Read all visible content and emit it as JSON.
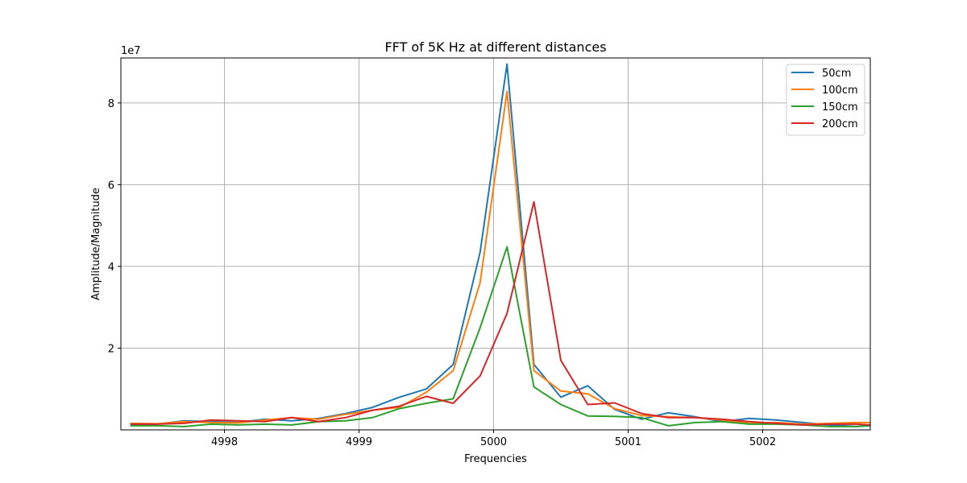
{
  "chart_data": {
    "type": "line",
    "title": "FFT of 5K Hz at different distances",
    "xlabel": "Frequencies",
    "ylabel": "Amplitude/Magnitude",
    "y_offset_label": "1e7",
    "xlim": [
      4997.23,
      5002.8
    ],
    "ylim": [
      0,
      9.1
    ],
    "x_ticks": [
      4998,
      4999,
      5000,
      5001,
      5002
    ],
    "x_tick_labels": [
      "4998",
      "4999",
      "5000",
      "5001",
      "5002"
    ],
    "y_ticks": [
      2,
      4,
      6,
      8
    ],
    "y_tick_labels": [
      "2",
      "4",
      "6",
      "8"
    ],
    "grid": true,
    "legend_position": "top-right",
    "x": [
      4997.3,
      4997.5,
      4997.7,
      4997.9,
      4998.1,
      4998.3,
      4998.5,
      4998.7,
      4998.9,
      4999.1,
      4999.3,
      4999.5,
      4999.7,
      4999.9,
      5000.1,
      5000.3,
      5000.5,
      5000.7,
      5000.9,
      5001.1,
      5001.3,
      5001.5,
      5001.7,
      5001.9,
      5002.1,
      5002.3,
      5002.5,
      5002.7,
      5002.8
    ],
    "series": [
      {
        "name": "50cm",
        "color": "#1f77b4",
        "values": [
          0.12,
          0.14,
          0.22,
          0.2,
          0.18,
          0.26,
          0.22,
          0.28,
          0.4,
          0.55,
          0.8,
          1.0,
          1.6,
          4.35,
          8.95,
          1.6,
          0.8,
          1.08,
          0.5,
          0.26,
          0.42,
          0.32,
          0.2,
          0.28,
          0.24,
          0.18,
          0.12,
          0.08,
          0.12
        ]
      },
      {
        "name": "100cm",
        "color": "#ff7f0e",
        "values": [
          0.16,
          0.15,
          0.2,
          0.18,
          0.17,
          0.24,
          0.3,
          0.26,
          0.38,
          0.48,
          0.55,
          0.92,
          1.45,
          3.6,
          8.28,
          1.45,
          0.95,
          0.88,
          0.52,
          0.35,
          0.32,
          0.3,
          0.24,
          0.16,
          0.18,
          0.14,
          0.16,
          0.18,
          0.18
        ]
      },
      {
        "name": "150cm",
        "color": "#2ca02c",
        "values": [
          0.1,
          0.1,
          0.08,
          0.14,
          0.12,
          0.14,
          0.12,
          0.2,
          0.22,
          0.3,
          0.52,
          0.65,
          0.76,
          2.5,
          4.48,
          1.05,
          0.62,
          0.34,
          0.33,
          0.3,
          0.1,
          0.18,
          0.2,
          0.14,
          0.14,
          0.12,
          0.08,
          0.08,
          0.1
        ]
      },
      {
        "name": "200cm",
        "color": "#d62728",
        "values": [
          0.14,
          0.14,
          0.16,
          0.24,
          0.22,
          0.2,
          0.3,
          0.2,
          0.3,
          0.48,
          0.58,
          0.82,
          0.65,
          1.32,
          2.85,
          5.58,
          1.7,
          0.62,
          0.66,
          0.4,
          0.3,
          0.3,
          0.26,
          0.2,
          0.16,
          0.12,
          0.14,
          0.14,
          0.12
        ]
      }
    ]
  }
}
